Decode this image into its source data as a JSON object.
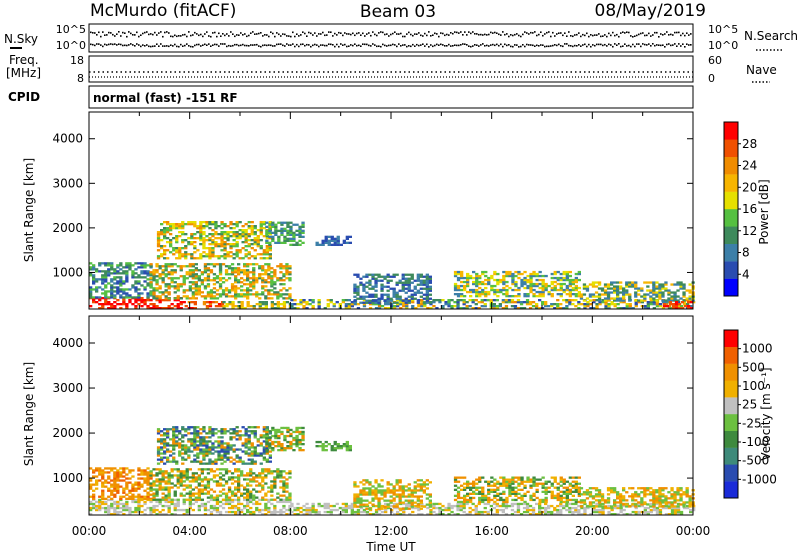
{
  "header": {
    "station": "McMurdo (fitACF)",
    "beam": "Beam 03",
    "date": "08/May/2019"
  },
  "noise_panel": {
    "left_label": "N.Sky",
    "right_label": "N.Search",
    "ticks_left": [
      "10^5",
      "10^0"
    ],
    "ticks_right": [
      "10^5",
      "10^0"
    ]
  },
  "freq_panel": {
    "label_line1": "Freq.",
    "label_line2": "[MHz]",
    "ticks_left": [
      "18",
      "8"
    ],
    "right_label": "Nave",
    "ticks_right": [
      "60",
      "0"
    ]
  },
  "cpid_panel": {
    "label": "CPID",
    "text": "normal (fast) -151 RF"
  },
  "chart_data": [
    {
      "type": "heatmap",
      "title": "",
      "xlabel": "",
      "ylabel": "Slant Range [km]",
      "x_ticks": [
        "00:00",
        "04:00",
        "08:00",
        "12:00",
        "16:00",
        "20:00",
        "00:00"
      ],
      "y_ticks": [
        "1000",
        "2000",
        "3000",
        "4000"
      ],
      "ylim": [
        180,
        4600
      ],
      "xlim_hours": [
        0,
        24
      ],
      "colorbar": {
        "label": "Power [dB]",
        "ticks": [
          "4",
          "8",
          "12",
          "16",
          "20",
          "24",
          "28"
        ],
        "colors": [
          "#0000ff",
          "#2a4cb0",
          "#3c7fa8",
          "#3e8a5c",
          "#55c041",
          "#e6e000",
          "#f7b500",
          "#f08c00",
          "#f05000",
          "#ff0000"
        ]
      },
      "regions": [
        {
          "t0": 0.0,
          "t1": 3.8,
          "r0": 180,
          "r1": 420,
          "levels": [
            9,
            9,
            8
          ]
        },
        {
          "t0": 3.8,
          "t1": 5.3,
          "r0": 180,
          "r1": 350,
          "levels": [
            8,
            9,
            7
          ]
        },
        {
          "t0": 5.3,
          "t1": 8.0,
          "r0": 180,
          "r1": 320,
          "levels": [
            5,
            6,
            3
          ]
        },
        {
          "t0": 0.0,
          "t1": 2.5,
          "r0": 420,
          "r1": 1200,
          "levels": [
            1,
            2,
            3,
            4
          ]
        },
        {
          "t0": 2.4,
          "t1": 8.0,
          "r0": 400,
          "r1": 1200,
          "levels": [
            3,
            4,
            6,
            7
          ]
        },
        {
          "t0": 2.7,
          "t1": 7.2,
          "r0": 1300,
          "r1": 2150,
          "levels": [
            3,
            4,
            5,
            6,
            7
          ]
        },
        {
          "t0": 7.0,
          "t1": 8.5,
          "r0": 1600,
          "r1": 2100,
          "levels": [
            2,
            3,
            4
          ]
        },
        {
          "t0": 9.0,
          "t1": 10.4,
          "r0": 1600,
          "r1": 1800,
          "levels": [
            1,
            2
          ]
        },
        {
          "t0": 8.0,
          "t1": 24.0,
          "r0": 180,
          "r1": 400,
          "levels": [
            1,
            2,
            3,
            4,
            5,
            6,
            7
          ]
        },
        {
          "t0": 10.5,
          "t1": 13.5,
          "r0": 300,
          "r1": 950,
          "levels": [
            1,
            2,
            3
          ]
        },
        {
          "t0": 14.5,
          "t1": 19.5,
          "r0": 450,
          "r1": 1000,
          "levels": [
            2,
            4,
            5,
            6
          ]
        },
        {
          "t0": 19.5,
          "t1": 24.0,
          "r0": 350,
          "r1": 800,
          "levels": [
            2,
            3,
            5,
            6
          ]
        },
        {
          "t0": 22.8,
          "t1": 24.0,
          "r0": 180,
          "r1": 350,
          "levels": [
            8,
            9
          ]
        }
      ]
    },
    {
      "type": "heatmap",
      "title": "",
      "xlabel": "Time UT",
      "ylabel": "Slant Range [km]",
      "x_ticks": [
        "00:00",
        "04:00",
        "08:00",
        "12:00",
        "16:00",
        "20:00",
        "00:00"
      ],
      "y_ticks": [
        "1000",
        "2000",
        "3000",
        "4000"
      ],
      "ylim": [
        180,
        4600
      ],
      "xlim_hours": [
        0,
        24
      ],
      "colorbar": {
        "label": "Velocity [m s⁻¹]",
        "ticks": [
          "1000",
          "500",
          "100",
          "25",
          "-25",
          "-100",
          "-500",
          "-1000"
        ],
        "colors": [
          "#1a2bd8",
          "#2a4cb0",
          "#3e8a7a",
          "#3e8a3e",
          "#6cc040",
          "#c0c0c0",
          "#f0b000",
          "#f09000",
          "#f06000",
          "#ff0000"
        ]
      },
      "regions": [
        {
          "t0": 0.0,
          "t1": 8.0,
          "r0": 180,
          "r1": 520,
          "levels": [
            5,
            5,
            4,
            6
          ]
        },
        {
          "t0": 0.0,
          "t1": 2.5,
          "r0": 520,
          "r1": 1200,
          "levels": [
            6,
            7,
            8,
            7
          ]
        },
        {
          "t0": 2.4,
          "t1": 8.0,
          "r0": 500,
          "r1": 1200,
          "levels": [
            3,
            4,
            6,
            7
          ]
        },
        {
          "t0": 2.7,
          "t1": 7.2,
          "r0": 1300,
          "r1": 2150,
          "levels": [
            1,
            2,
            3,
            4,
            7
          ]
        },
        {
          "t0": 7.0,
          "t1": 8.5,
          "r0": 1600,
          "r1": 2100,
          "levels": [
            3,
            4,
            7
          ]
        },
        {
          "t0": 9.0,
          "t1": 10.4,
          "r0": 1600,
          "r1": 1800,
          "levels": [
            3,
            4
          ]
        },
        {
          "t0": 8.0,
          "t1": 24.0,
          "r0": 180,
          "r1": 420,
          "levels": [
            5,
            5,
            4,
            6
          ]
        },
        {
          "t0": 10.5,
          "t1": 13.5,
          "r0": 300,
          "r1": 950,
          "levels": [
            4,
            6,
            7
          ]
        },
        {
          "t0": 14.5,
          "t1": 19.5,
          "r0": 450,
          "r1": 1000,
          "levels": [
            3,
            4,
            6,
            7
          ]
        },
        {
          "t0": 19.5,
          "t1": 24.0,
          "r0": 350,
          "r1": 800,
          "levels": [
            4,
            6,
            7
          ]
        }
      ]
    }
  ]
}
